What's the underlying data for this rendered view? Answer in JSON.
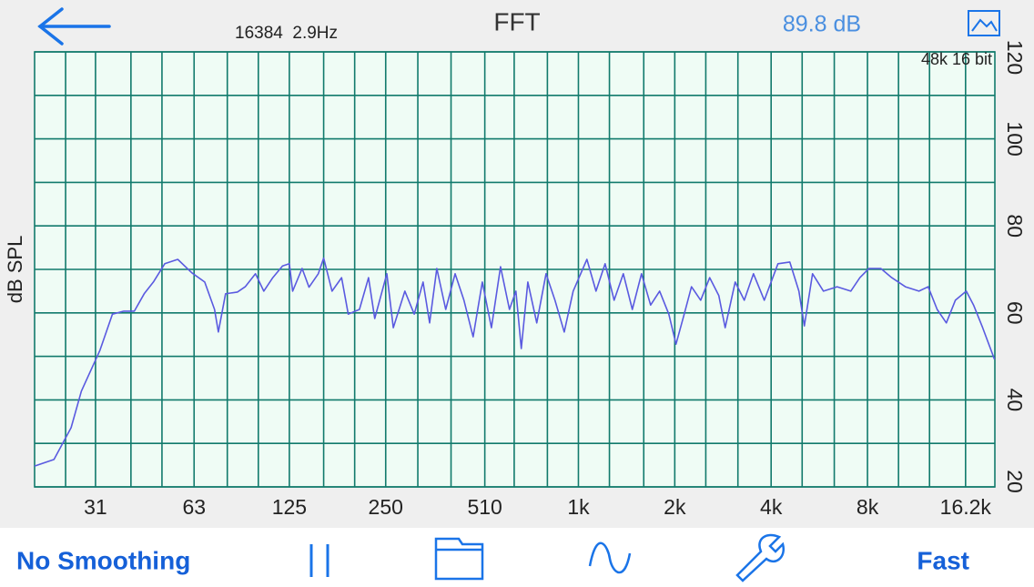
{
  "header": {
    "resolution": "16384  2.9Hz",
    "title": "FFT",
    "level": "89.8 dB"
  },
  "chart_data": {
    "type": "line",
    "y_label": "dB SPL",
    "annotation": "48k 16 bit",
    "x_scale": "log",
    "xlim": [
      20,
      20000
    ],
    "ylim": [
      20,
      120
    ],
    "xticks": [
      31,
      63,
      125,
      250,
      510,
      {
        "value": 1000,
        "label": "1k"
      },
      {
        "value": 2000,
        "label": "2k"
      },
      {
        "value": 4000,
        "label": "4k"
      },
      {
        "value": 8000,
        "label": "8k"
      },
      {
        "value": 16200,
        "label": "16.2k"
      }
    ],
    "yticks": [
      20,
      40,
      60,
      80,
      100,
      120
    ],
    "xgrid": [
      25,
      40,
      50,
      80,
      100,
      160,
      200,
      315,
      400,
      630,
      800,
      1250,
      1600,
      2500,
      3150,
      5000,
      6300,
      10000,
      12500
    ],
    "ygrid": [
      30,
      50,
      70,
      90,
      110
    ],
    "grid": true,
    "background": "#effcf5",
    "grid_color": "#117a6c",
    "series": [
      {
        "color": "#5a5ae0",
        "x": [
          20,
          23,
          26,
          28,
          32,
          35,
          38,
          41,
          44,
          47,
          51,
          56,
          62,
          68,
          73,
          75,
          79,
          86,
          91,
          98,
          104,
          111,
          119,
          125,
          128,
          137,
          144,
          154,
          160,
          170,
          182,
          191,
          207,
          221,
          231,
          252,
          264,
          287,
          307,
          327,
          343,
          361,
          385,
          412,
          439,
          469,
          501,
          535,
          571,
          609,
          638,
          663,
          695,
          741,
          792,
          845,
          903,
          963,
          1063,
          1135,
          1212,
          1293,
          1381,
          1474,
          1574,
          1681,
          1794,
          1916,
          2018,
          2141,
          2256,
          2409,
          2572,
          2746,
          2874,
          3089,
          3297,
          3522,
          3808,
          4202,
          4576,
          4884,
          5080,
          5390,
          5829,
          6431,
          7093,
          7574,
          8084,
          8804,
          9522,
          10506,
          11587,
          12373,
          13206,
          14106,
          15056,
          16282,
          17161,
          18318,
          19950
        ],
        "values": [
          24.8,
          26.3,
          33.6,
          42,
          51.4,
          59.7,
          60.4,
          60.4,
          64.4,
          67.1,
          71.3,
          72.3,
          69.2,
          67.1,
          60.8,
          55.6,
          64.4,
          64.8,
          66,
          69,
          65,
          68.1,
          70.8,
          71.3,
          65,
          70.2,
          65.9,
          69,
          72.6,
          65,
          68.1,
          59.7,
          60.8,
          68.1,
          58.7,
          69,
          56.6,
          65,
          59.7,
          67.1,
          57.7,
          70.2,
          60.8,
          69,
          62.9,
          54.5,
          67.1,
          56.6,
          70.6,
          60.8,
          65,
          51.8,
          67.1,
          57.7,
          69,
          62.9,
          55.6,
          65,
          72.3,
          65,
          71.3,
          62.9,
          69,
          60.8,
          69,
          61.8,
          65,
          59.7,
          52.8,
          59.7,
          66,
          62.9,
          68.1,
          64,
          56.6,
          67.1,
          62.9,
          69,
          62.9,
          71.3,
          71.7,
          65,
          57,
          69,
          65,
          66,
          65,
          68.1,
          70.2,
          70.2,
          68.1,
          66,
          65,
          66,
          60.8,
          57.7,
          62.9,
          65,
          61.8,
          56.6,
          49.3
        ]
      }
    ]
  },
  "toolbar": {
    "smoothing": "No Smoothing",
    "speed": "Fast"
  }
}
